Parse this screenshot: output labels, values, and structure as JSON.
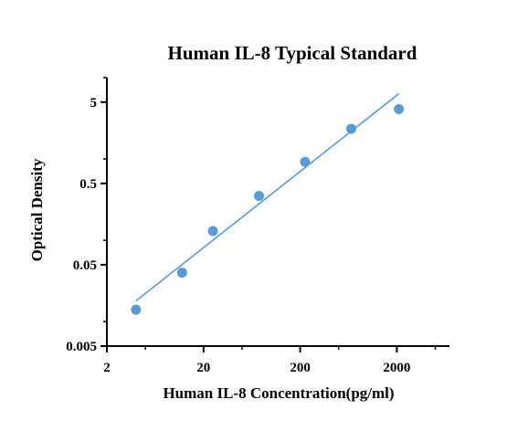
{
  "chart_data": {
    "type": "scatter",
    "title": "Human IL-8 Typical Standard",
    "xlabel": "Human IL-8 Concentration(pg/ml)",
    "ylabel": "Optical Density",
    "x_scale": "log",
    "y_scale": "log",
    "xlim": [
      2,
      7000
    ],
    "ylim": [
      0.005,
      10
    ],
    "x_ticks": [
      2,
      20,
      200,
      2000
    ],
    "x_tick_labels": [
      "2",
      "20",
      "200",
      "2000"
    ],
    "y_ticks": [
      0.005,
      0.05,
      0.5,
      5
    ],
    "y_tick_labels": [
      "0.005",
      "0.05",
      "0.5",
      "5"
    ],
    "points": [
      {
        "x": 4,
        "y": 0.014
      },
      {
        "x": 12,
        "y": 0.04
      },
      {
        "x": 25,
        "y": 0.13
      },
      {
        "x": 75,
        "y": 0.35
      },
      {
        "x": 225,
        "y": 0.92
      },
      {
        "x": 675,
        "y": 2.35
      },
      {
        "x": 2100,
        "y": 4.1
      }
    ],
    "fit_line": {
      "x": [
        4,
        2100
      ],
      "y": [
        0.018,
        6.35
      ]
    },
    "colors": {
      "points": "#5b9bd5",
      "line": "#5b9bd5"
    },
    "grid": false,
    "legend": "none"
  }
}
